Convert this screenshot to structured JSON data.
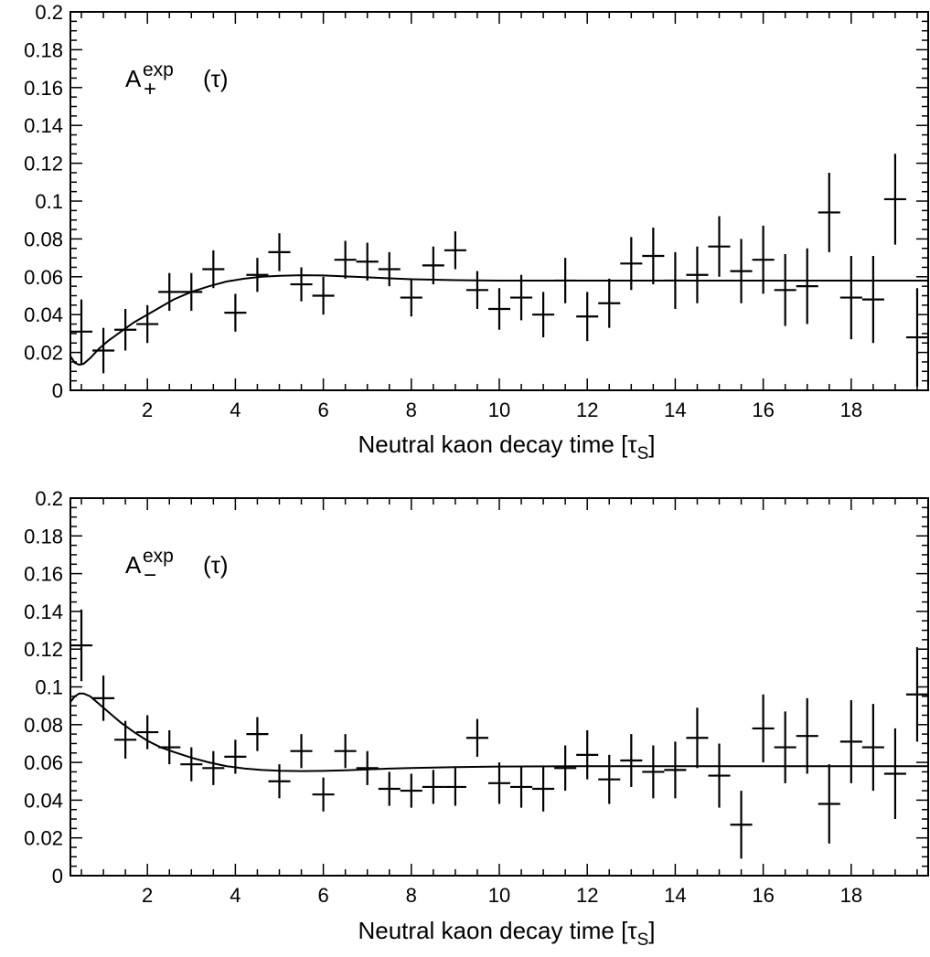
{
  "chart_data": [
    {
      "type": "scatter",
      "panel": "top",
      "series_label": {
        "base": "A",
        "sup": "exp",
        "sub": "+",
        "arg": "(τ)"
      },
      "xlabel": {
        "text": "Neutral kaon decay time [τ",
        "sub": "S",
        "close": "]"
      },
      "ylabel": "",
      "xlim": [
        0.25,
        19.75
      ],
      "ylim": [
        0,
        0.2
      ],
      "x_ticks": [
        2,
        4,
        6,
        8,
        10,
        12,
        14,
        16,
        18
      ],
      "x_tick_labels": [
        "2",
        "4",
        "6",
        "8",
        "10",
        "12",
        "14",
        "16",
        "18"
      ],
      "y_ticks": [
        0,
        0.02,
        0.04,
        0.06,
        0.08,
        0.1,
        0.12,
        0.14,
        0.16,
        0.18,
        0.2
      ],
      "y_tick_labels": [
        "0",
        "0.02",
        "0.04",
        "0.06",
        "0.08",
        "0.1",
        "0.12",
        "0.14",
        "0.16",
        "0.18",
        "0.2"
      ],
      "points": [
        {
          "x": 0.5,
          "y": 0.031,
          "err": 0.017
        },
        {
          "x": 1.0,
          "y": 0.021,
          "err": 0.012
        },
        {
          "x": 1.5,
          "y": 0.032,
          "err": 0.011
        },
        {
          "x": 2.0,
          "y": 0.035,
          "err": 0.01
        },
        {
          "x": 2.5,
          "y": 0.052,
          "err": 0.01
        },
        {
          "x": 3.0,
          "y": 0.052,
          "err": 0.01
        },
        {
          "x": 3.5,
          "y": 0.064,
          "err": 0.01
        },
        {
          "x": 4.0,
          "y": 0.041,
          "err": 0.01
        },
        {
          "x": 4.5,
          "y": 0.061,
          "err": 0.009
        },
        {
          "x": 5.0,
          "y": 0.073,
          "err": 0.01
        },
        {
          "x": 5.5,
          "y": 0.056,
          "err": 0.009
        },
        {
          "x": 6.0,
          "y": 0.05,
          "err": 0.01
        },
        {
          "x": 6.5,
          "y": 0.069,
          "err": 0.01
        },
        {
          "x": 7.0,
          "y": 0.068,
          "err": 0.01
        },
        {
          "x": 7.5,
          "y": 0.064,
          "err": 0.009
        },
        {
          "x": 8.0,
          "y": 0.049,
          "err": 0.01
        },
        {
          "x": 8.5,
          "y": 0.066,
          "err": 0.01
        },
        {
          "x": 9.0,
          "y": 0.074,
          "err": 0.01
        },
        {
          "x": 9.5,
          "y": 0.053,
          "err": 0.01
        },
        {
          "x": 10.0,
          "y": 0.043,
          "err": 0.011
        },
        {
          "x": 10.5,
          "y": 0.049,
          "err": 0.012
        },
        {
          "x": 11.0,
          "y": 0.04,
          "err": 0.012
        },
        {
          "x": 11.5,
          "y": 0.058,
          "err": 0.012
        },
        {
          "x": 12.0,
          "y": 0.039,
          "err": 0.013
        },
        {
          "x": 12.5,
          "y": 0.046,
          "err": 0.013
        },
        {
          "x": 13.0,
          "y": 0.067,
          "err": 0.014
        },
        {
          "x": 13.5,
          "y": 0.071,
          "err": 0.015
        },
        {
          "x": 14.0,
          "y": 0.058,
          "err": 0.015
        },
        {
          "x": 14.5,
          "y": 0.061,
          "err": 0.015
        },
        {
          "x": 15.0,
          "y": 0.076,
          "err": 0.016
        },
        {
          "x": 15.5,
          "y": 0.063,
          "err": 0.017
        },
        {
          "x": 16.0,
          "y": 0.069,
          "err": 0.018
        },
        {
          "x": 16.5,
          "y": 0.053,
          "err": 0.019
        },
        {
          "x": 17.0,
          "y": 0.055,
          "err": 0.02
        },
        {
          "x": 17.5,
          "y": 0.094,
          "err": 0.021
        },
        {
          "x": 18.0,
          "y": 0.049,
          "err": 0.022
        },
        {
          "x": 18.5,
          "y": 0.048,
          "err": 0.023
        },
        {
          "x": 19.0,
          "y": 0.101,
          "err": 0.024
        },
        {
          "x": 19.5,
          "y": 0.028,
          "err": 0.026
        }
      ],
      "curve": {
        "x": [
          0.25,
          0.35,
          0.45,
          0.55,
          0.7,
          0.9,
          1.1,
          1.4,
          1.7,
          2.0,
          2.3,
          2.6,
          3.0,
          3.4,
          3.8,
          4.2,
          4.6,
          5.0,
          5.5,
          6.0,
          6.5,
          7.0,
          7.5,
          8.0,
          9.0,
          10.0,
          12.0,
          14.0,
          16.0,
          18.0,
          19.75
        ],
        "y": [
          0.018,
          0.0145,
          0.0135,
          0.014,
          0.017,
          0.022,
          0.026,
          0.031,
          0.036,
          0.04,
          0.044,
          0.048,
          0.052,
          0.055,
          0.0575,
          0.059,
          0.06,
          0.0605,
          0.0608,
          0.0607,
          0.0602,
          0.0597,
          0.0592,
          0.0587,
          0.0582,
          0.058,
          0.058,
          0.058,
          0.058,
          0.058,
          0.058
        ]
      }
    },
    {
      "type": "scatter",
      "panel": "bottom",
      "series_label": {
        "base": "A",
        "sup": "exp",
        "sub": "−",
        "arg": "(τ)"
      },
      "xlabel": {
        "text": "Neutral kaon decay time [τ",
        "sub": "S",
        "close": "]"
      },
      "ylabel": "",
      "xlim": [
        0.25,
        19.75
      ],
      "ylim": [
        0,
        0.2
      ],
      "x_ticks": [
        2,
        4,
        6,
        8,
        10,
        12,
        14,
        16,
        18
      ],
      "x_tick_labels": [
        "2",
        "4",
        "6",
        "8",
        "10",
        "12",
        "14",
        "16",
        "18"
      ],
      "y_ticks": [
        0,
        0.02,
        0.04,
        0.06,
        0.08,
        0.1,
        0.12,
        0.14,
        0.16,
        0.18,
        0.2
      ],
      "y_tick_labels": [
        "0",
        "0.02",
        "0.04",
        "0.06",
        "0.08",
        "0.1",
        "0.12",
        "0.14",
        "0.16",
        "0.18",
        "0.2"
      ],
      "points": [
        {
          "x": 0.5,
          "y": 0.122,
          "err": 0.019
        },
        {
          "x": 1.0,
          "y": 0.094,
          "err": 0.012
        },
        {
          "x": 1.5,
          "y": 0.072,
          "err": 0.01
        },
        {
          "x": 2.0,
          "y": 0.076,
          "err": 0.009
        },
        {
          "x": 2.5,
          "y": 0.068,
          "err": 0.009
        },
        {
          "x": 3.0,
          "y": 0.059,
          "err": 0.009
        },
        {
          "x": 3.5,
          "y": 0.057,
          "err": 0.009
        },
        {
          "x": 4.0,
          "y": 0.063,
          "err": 0.009
        },
        {
          "x": 4.5,
          "y": 0.075,
          "err": 0.009
        },
        {
          "x": 5.0,
          "y": 0.05,
          "err": 0.009
        },
        {
          "x": 5.5,
          "y": 0.066,
          "err": 0.009
        },
        {
          "x": 6.0,
          "y": 0.043,
          "err": 0.009
        },
        {
          "x": 6.5,
          "y": 0.066,
          "err": 0.009
        },
        {
          "x": 7.0,
          "y": 0.057,
          "err": 0.009
        },
        {
          "x": 7.5,
          "y": 0.046,
          "err": 0.009
        },
        {
          "x": 8.0,
          "y": 0.045,
          "err": 0.009
        },
        {
          "x": 8.5,
          "y": 0.047,
          "err": 0.009
        },
        {
          "x": 9.0,
          "y": 0.047,
          "err": 0.01
        },
        {
          "x": 9.5,
          "y": 0.073,
          "err": 0.01
        },
        {
          "x": 10.0,
          "y": 0.049,
          "err": 0.011
        },
        {
          "x": 10.5,
          "y": 0.047,
          "err": 0.011
        },
        {
          "x": 11.0,
          "y": 0.046,
          "err": 0.012
        },
        {
          "x": 11.5,
          "y": 0.057,
          "err": 0.012
        },
        {
          "x": 12.0,
          "y": 0.064,
          "err": 0.013
        },
        {
          "x": 12.5,
          "y": 0.051,
          "err": 0.013
        },
        {
          "x": 13.0,
          "y": 0.061,
          "err": 0.014
        },
        {
          "x": 13.5,
          "y": 0.055,
          "err": 0.014
        },
        {
          "x": 14.0,
          "y": 0.056,
          "err": 0.015
        },
        {
          "x": 14.5,
          "y": 0.073,
          "err": 0.016
        },
        {
          "x": 15.0,
          "y": 0.053,
          "err": 0.017
        },
        {
          "x": 15.5,
          "y": 0.027,
          "err": 0.018
        },
        {
          "x": 16.0,
          "y": 0.078,
          "err": 0.018
        },
        {
          "x": 16.5,
          "y": 0.068,
          "err": 0.019
        },
        {
          "x": 17.0,
          "y": 0.074,
          "err": 0.02
        },
        {
          "x": 17.5,
          "y": 0.038,
          "err": 0.021
        },
        {
          "x": 18.0,
          "y": 0.071,
          "err": 0.022
        },
        {
          "x": 18.5,
          "y": 0.068,
          "err": 0.023
        },
        {
          "x": 19.0,
          "y": 0.054,
          "err": 0.024
        },
        {
          "x": 19.5,
          "y": 0.096,
          "err": 0.025
        }
      ],
      "curve": {
        "x": [
          0.25,
          0.35,
          0.45,
          0.55,
          0.7,
          0.9,
          1.1,
          1.4,
          1.7,
          2.0,
          2.3,
          2.6,
          3.0,
          3.4,
          3.8,
          4.2,
          4.6,
          5.0,
          5.5,
          6.0,
          6.5,
          7.0,
          7.5,
          8.0,
          9.0,
          10.0,
          12.0,
          14.0,
          16.0,
          18.0,
          19.75
        ],
        "y": [
          0.092,
          0.095,
          0.0965,
          0.0965,
          0.095,
          0.091,
          0.087,
          0.081,
          0.076,
          0.0715,
          0.068,
          0.0655,
          0.0625,
          0.06,
          0.058,
          0.0568,
          0.056,
          0.0556,
          0.0554,
          0.0555,
          0.0558,
          0.0563,
          0.0567,
          0.057,
          0.0575,
          0.0578,
          0.058,
          0.058,
          0.058,
          0.058,
          0.058
        ]
      }
    }
  ]
}
